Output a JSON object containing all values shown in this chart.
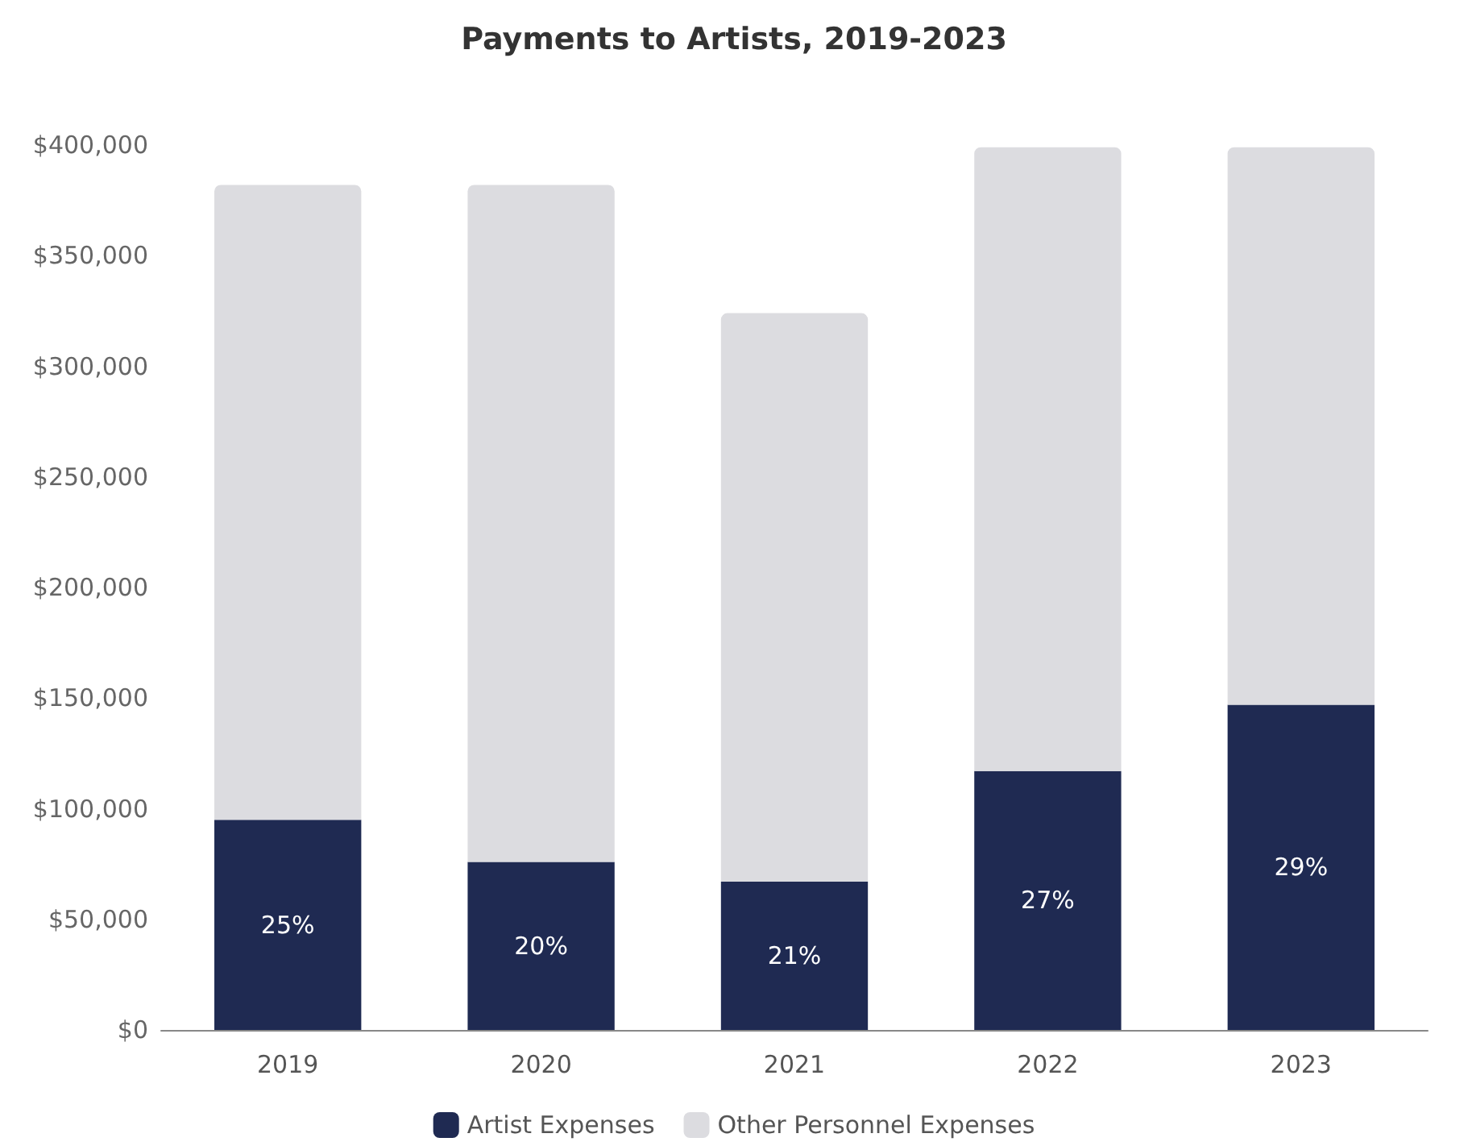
{
  "chart_data": {
    "type": "bar",
    "title": "Payments to Artists, 2019-2023",
    "categories": [
      "2019",
      "2020",
      "2021",
      "2022",
      "2023"
    ],
    "stacked": true,
    "series": [
      {
        "name": "Artist Expenses",
        "color": "#1f2a52",
        "values": [
          95000,
          76000,
          67000,
          117000,
          147000
        ]
      },
      {
        "name": "Other Personnel Expenses",
        "color": "#dcdce0",
        "values": [
          287000,
          306000,
          257000,
          282000,
          252000
        ]
      }
    ],
    "ylim": [
      0,
      400000
    ],
    "yticks": [
      {
        "value": 0,
        "label": "$0"
      },
      {
        "value": 50000,
        "label": "$50,000"
      },
      {
        "value": 100000,
        "label": "$100,000"
      },
      {
        "value": 150000,
        "label": "$150,000"
      },
      {
        "value": 200000,
        "label": "$200,000"
      },
      {
        "value": 250000,
        "label": "$250,000"
      },
      {
        "value": 300000,
        "label": "$300,000"
      },
      {
        "value": 350000,
        "label": "$350,000"
      },
      {
        "value": 400000,
        "label": "$400,000"
      }
    ],
    "grid": false,
    "legend": "bottom",
    "annotations": [
      "25%",
      "20%",
      "21%",
      "27%",
      "29%"
    ]
  }
}
